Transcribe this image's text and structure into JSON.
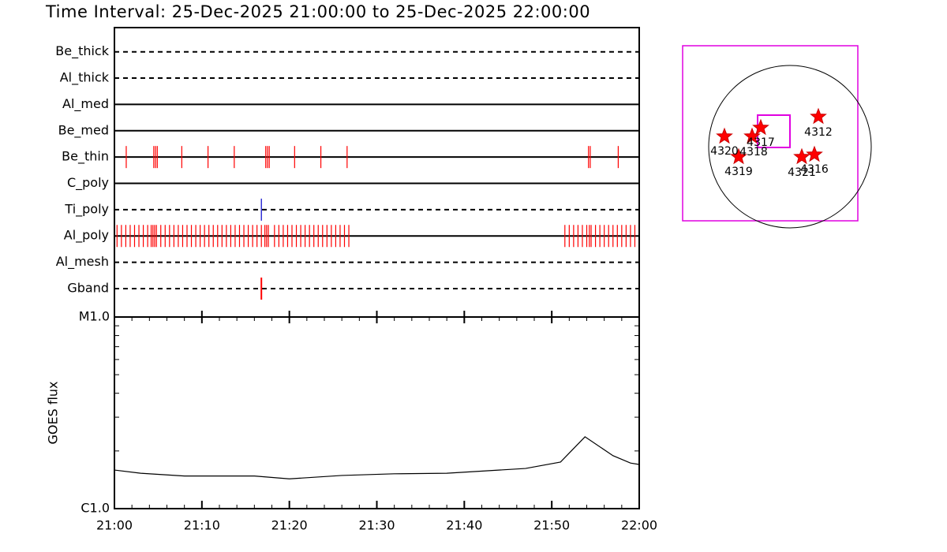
{
  "chart_data": [
    {
      "type": "timeline",
      "title": "Time Interval: 25-Dec-2025 21:00:00 to 25-Dec-2025 22:00:00",
      "xlim": [
        0,
        60
      ],
      "rows": [
        {
          "name": "Be_thick",
          "line_style": "dashed",
          "color": "#ff0000",
          "events": []
        },
        {
          "name": "Al_thick",
          "line_style": "dashed",
          "color": "#ff0000",
          "events": []
        },
        {
          "name": "Al_med",
          "line_style": "solid",
          "color": "#ff0000",
          "events": []
        },
        {
          "name": "Be_med",
          "line_style": "solid",
          "color": "#ff0000",
          "events": []
        },
        {
          "name": "Be_thin",
          "line_style": "solid",
          "color": "#ff0000",
          "events": [
            1.35,
            4.5,
            4.7,
            4.9,
            7.7,
            10.7,
            13.7,
            17.3,
            17.5,
            17.7,
            20.6,
            23.6,
            26.6,
            54.2,
            54.4,
            57.6
          ]
        },
        {
          "name": "C_poly",
          "line_style": "solid",
          "color": "#ff0000",
          "events": []
        },
        {
          "name": "Ti_poly",
          "line_style": "dashed",
          "color": "#0000cc",
          "events": [
            16.8
          ]
        },
        {
          "name": "Al_poly",
          "line_style": "solid",
          "color": "#ff0000",
          "events": [
            0.3,
            0.8,
            1.3,
            1.8,
            2.3,
            2.8,
            3.3,
            3.8,
            4.2,
            4.4,
            4.6,
            4.8,
            5.3,
            5.8,
            6.3,
            6.8,
            7.3,
            7.8,
            8.3,
            8.8,
            9.3,
            9.8,
            10.3,
            10.8,
            11.3,
            11.8,
            12.3,
            12.8,
            13.3,
            13.8,
            14.3,
            14.8,
            15.3,
            15.8,
            16.3,
            16.8,
            17.2,
            17.4,
            17.6,
            18.3,
            18.8,
            19.3,
            19.8,
            20.3,
            20.8,
            21.3,
            21.8,
            22.3,
            22.8,
            23.3,
            23.8,
            24.3,
            24.8,
            25.3,
            25.8,
            26.3,
            26.8,
            51.5,
            52.0,
            52.5,
            53.0,
            53.5,
            54.0,
            54.3,
            54.5,
            55.0,
            55.5,
            56.0,
            56.5,
            57.0,
            57.5,
            58.0,
            58.5,
            59.0,
            59.5
          ]
        },
        {
          "name": "Al_mesh",
          "line_style": "dashed",
          "color": "#ff0000",
          "events": []
        },
        {
          "name": "Gband",
          "line_style": "dashed",
          "color": "#ff0000",
          "events": [
            16.8
          ]
        }
      ]
    },
    {
      "type": "line",
      "y_label": "GOES flux",
      "log_scale": true,
      "color": "#000000",
      "xlim": [
        0,
        60
      ],
      "xticks": [
        {
          "value": 0,
          "label": "21:00"
        },
        {
          "value": 10,
          "label": "21:10"
        },
        {
          "value": 20,
          "label": "21:20"
        },
        {
          "value": 30,
          "label": "21:30"
        },
        {
          "value": 40,
          "label": "21:40"
        },
        {
          "value": 50,
          "label": "21:50"
        },
        {
          "value": 60,
          "label": "22:00"
        }
      ],
      "minor_xticks": [
        2,
        4,
        6,
        8,
        12,
        14,
        16,
        18,
        22,
        24,
        26,
        28,
        32,
        34,
        36,
        38,
        42,
        44,
        46,
        48,
        52,
        54,
        56,
        58
      ],
      "ylim": [
        1e-06,
        1e-05
      ],
      "yticks": [
        {
          "value": 1e-06,
          "label": "C1.0"
        },
        {
          "value": 1e-05,
          "label": "M1.0"
        }
      ],
      "minor_yticks": [
        2e-06,
        3e-06,
        4e-06,
        5e-06,
        6e-06,
        7e-06,
        8e-06,
        9e-06
      ],
      "x": [
        0,
        3,
        8,
        16,
        20,
        26,
        32,
        38,
        43,
        47,
        51,
        53.8,
        57,
        59,
        60
      ],
      "values": [
        1.59e-06,
        1.53e-06,
        1.48e-06,
        1.48e-06,
        1.43e-06,
        1.49e-06,
        1.52e-06,
        1.53e-06,
        1.58e-06,
        1.62e-06,
        1.75e-06,
        2.37e-06,
        1.89e-06,
        1.73e-06,
        1.7e-06
      ]
    }
  ],
  "map": {
    "regions": [
      "4312",
      "4320",
      "4318",
      "4317",
      "4319",
      "4321",
      "4316"
    ]
  }
}
